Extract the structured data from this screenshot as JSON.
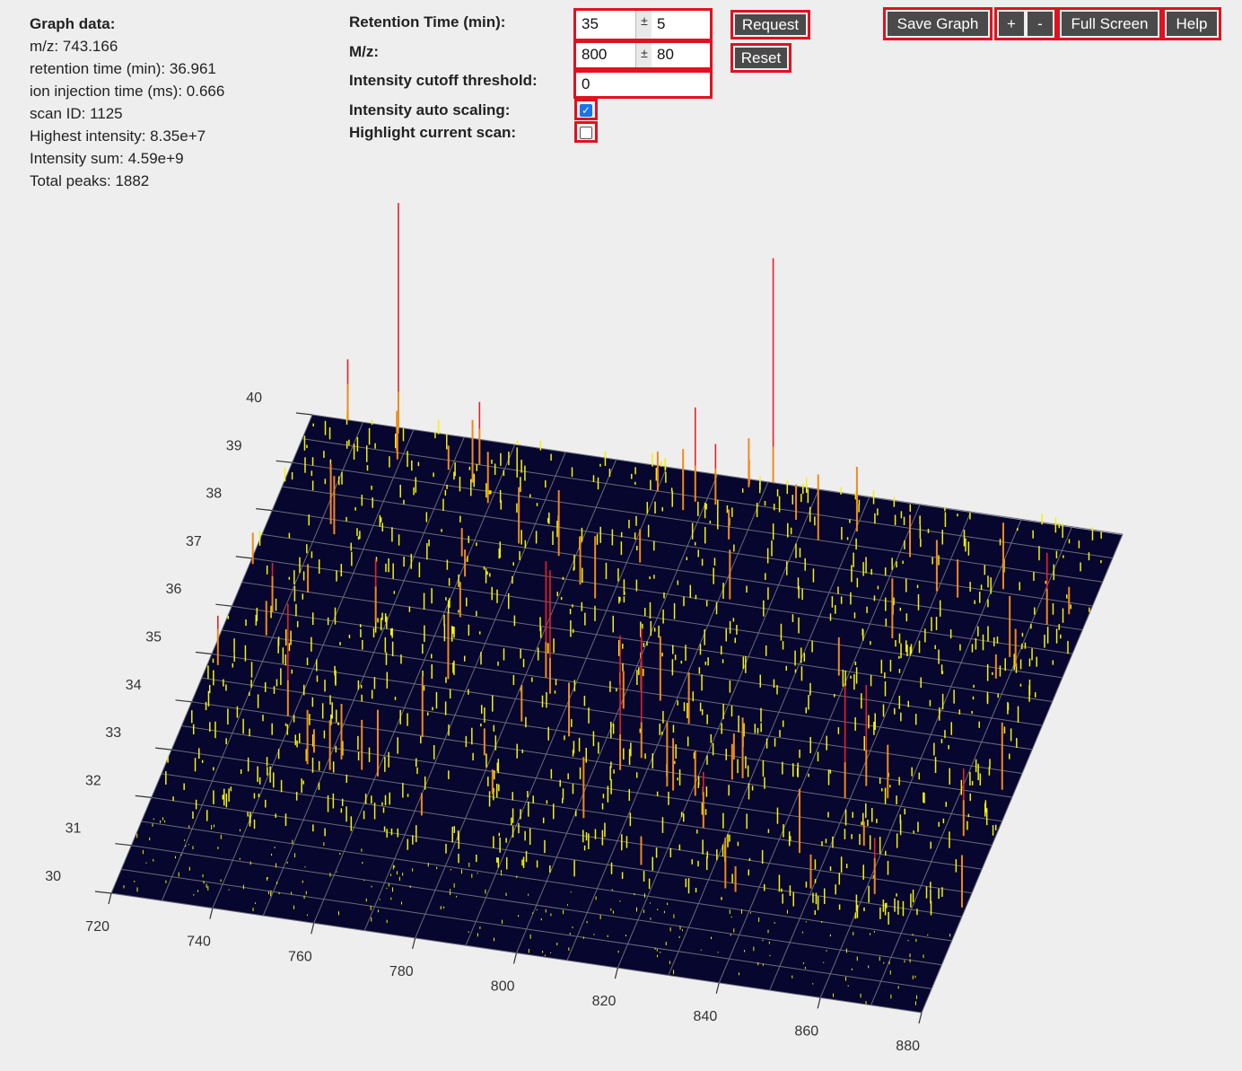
{
  "info": {
    "heading": "Graph data:",
    "lines": [
      "m/z: 743.166",
      "retention time (min): 36.961",
      "ion injection time (ms): 0.666",
      "scan ID: 1125",
      "Highest intensity: 8.35e+7",
      "Intensity sum: 4.59e+9",
      "Total peaks: 1882"
    ]
  },
  "form": {
    "rt_label": "Retention Time (min):",
    "rt_value": "35",
    "rt_tolerance": "5",
    "mz_label": "M/z:",
    "mz_value": "800",
    "mz_tolerance": "80",
    "pm_symbol": "±",
    "cutoff_label": "Intensity cutoff threshold:",
    "cutoff_value": "0",
    "autoscale_label": "Intensity auto scaling:",
    "autoscale_checked": true,
    "highlight_label": "Highlight current scan:",
    "highlight_checked": false
  },
  "buttons": {
    "request": "Request",
    "reset": "Reset",
    "save_graph": "Save Graph",
    "zoom_in": "+",
    "zoom_out": "-",
    "full_screen": "Full Screen",
    "help": "Help"
  },
  "chart_data": {
    "type": "3d-peak-plot",
    "x_axis": {
      "quantity": "m/z",
      "range": [
        720,
        880
      ],
      "ticks": [
        720,
        740,
        760,
        780,
        800,
        820,
        840,
        860,
        880
      ]
    },
    "y_axis": {
      "quantity": "retention time (min)",
      "range": [
        30,
        40
      ],
      "ticks": [
        30,
        31,
        32,
        33,
        34,
        35,
        36,
        37,
        38,
        39,
        40
      ]
    },
    "colors": {
      "floor": "#06062e",
      "grid": "#6a6a7a",
      "low": "#f2f20a",
      "mid": "#f08a1a",
      "high": "#e8202a"
    },
    "major_peaks": [
      {
        "mz": 737.0,
        "rt": 40.0,
        "intensity": 1.0
      },
      {
        "mz": 811.0,
        "rt": 40.0,
        "intensity": 1.0
      },
      {
        "mz": 727.0,
        "rt": 40.0,
        "intensity": 0.27
      },
      {
        "mz": 755.0,
        "rt": 39.5,
        "intensity": 0.28
      },
      {
        "mz": 798.0,
        "rt": 39.4,
        "intensity": 0.42
      },
      {
        "mz": 802.0,
        "rt": 39.4,
        "intensity": 0.27
      },
      {
        "mz": 873.0,
        "rt": 38.0,
        "intensity": 0.32
      },
      {
        "mz": 739.0,
        "rt": 34.0,
        "intensity": 0.5
      },
      {
        "mz": 784.0,
        "rt": 35.5,
        "intensity": 0.52
      },
      {
        "mz": 786.0,
        "rt": 35.2,
        "intensity": 0.55
      },
      {
        "mz": 805.0,
        "rt": 33.9,
        "intensity": 0.6
      },
      {
        "mz": 808.0,
        "rt": 34.2,
        "intensity": 0.58
      },
      {
        "mz": 849.0,
        "rt": 34.0,
        "intensity": 0.5
      },
      {
        "mz": 852.0,
        "rt": 34.3,
        "intensity": 0.45
      },
      {
        "mz": 874.0,
        "rt": 33.6,
        "intensity": 0.3
      },
      {
        "mz": 862.0,
        "rt": 32.2,
        "intensity": 0.25
      },
      {
        "mz": 825.0,
        "rt": 33.0,
        "intensity": 0.25
      },
      {
        "mz": 748.0,
        "rt": 36.1,
        "intensity": 0.28
      },
      {
        "mz": 722.0,
        "rt": 34.8,
        "intensity": 0.22
      },
      {
        "mz": 728.0,
        "rt": 36.0,
        "intensity": 0.22
      }
    ]
  }
}
